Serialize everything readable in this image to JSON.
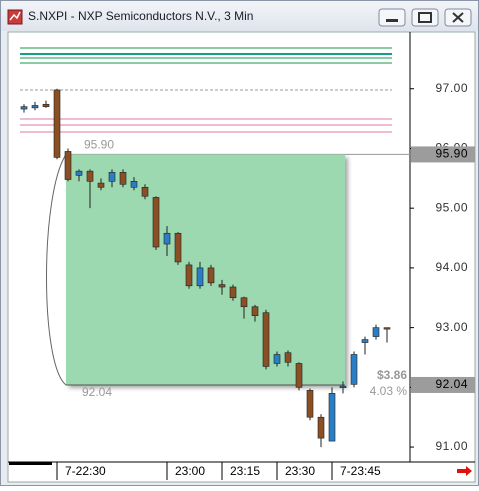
{
  "window_title": "S.NXPI - NXP Semiconductors N.V., 3 Min",
  "chart_data": {
    "type": "candlestick",
    "categories": [
      null,
      null,
      null,
      "7-22:30",
      null,
      null,
      null,
      null,
      null,
      null,
      null,
      null,
      null,
      "23:00",
      null,
      null,
      null,
      null,
      "23:15",
      null,
      null,
      null,
      null,
      "23:30",
      null,
      null,
      null,
      null,
      "7-23:45",
      null,
      null,
      null,
      null,
      null
    ],
    "open": [
      96.66,
      96.68,
      96.74,
      96.98,
      95.95,
      95.55,
      95.62,
      95.42,
      95.45,
      95.6,
      95.35,
      95.35,
      95.18,
      94.4,
      94.58,
      94.05,
      93.7,
      94.0,
      93.72,
      93.68,
      93.5,
      93.35,
      93.25,
      92.4,
      92.58,
      92.4,
      91.95,
      91.5,
      91.1,
      92.0,
      92.05,
      92.75,
      92.85,
      93.0
    ],
    "high": [
      96.74,
      96.78,
      96.8,
      97.0,
      96.0,
      95.65,
      95.65,
      95.5,
      95.65,
      95.65,
      95.52,
      95.4,
      95.2,
      94.7,
      94.6,
      94.1,
      94.1,
      94.05,
      93.8,
      93.72,
      93.52,
      93.38,
      93.3,
      92.6,
      92.62,
      92.42,
      91.98,
      91.55,
      92.0,
      92.1,
      92.6,
      92.85,
      93.05,
      93.0
    ],
    "low": [
      96.6,
      96.64,
      96.68,
      95.82,
      95.45,
      95.45,
      95.0,
      95.3,
      95.35,
      95.35,
      95.3,
      95.15,
      94.3,
      94.2,
      94.05,
      93.65,
      93.65,
      93.7,
      93.55,
      93.45,
      93.15,
      93.1,
      92.3,
      92.35,
      92.35,
      91.95,
      91.45,
      91.0,
      91.1,
      91.9,
      92.0,
      92.55,
      92.8,
      92.75
    ],
    "close": [
      96.7,
      96.72,
      96.7,
      95.85,
      95.48,
      95.62,
      95.45,
      95.35,
      95.6,
      95.4,
      95.45,
      95.2,
      94.35,
      94.58,
      94.1,
      93.7,
      94.0,
      93.75,
      93.68,
      93.5,
      93.35,
      93.2,
      92.35,
      92.55,
      92.42,
      92.0,
      91.5,
      91.15,
      91.9,
      92.02,
      92.55,
      92.8,
      93.0,
      92.98
    ],
    "up_color": "#2a7ec4",
    "down_color": "#8a4f22",
    "ylim": [
      90.75,
      97.95
    ],
    "yticks": [
      {
        "value": 91,
        "label": "91.00"
      },
      {
        "value": 92,
        "label": "92.00"
      },
      {
        "value": 93,
        "label": "93.00"
      },
      {
        "value": 94,
        "label": "94.00"
      },
      {
        "value": 95,
        "label": "95.00"
      },
      {
        "value": 96,
        "label": "96.00"
      },
      {
        "value": 97,
        "label": "97.00"
      }
    ],
    "range_top": {
      "value": 95.9,
      "label": "95.90"
    },
    "range_bottom": {
      "value": 92.04,
      "label": "92.04"
    },
    "range_change": {
      "value": 3.86,
      "label": "$3.86"
    },
    "range_change_pct": {
      "value": 4.03,
      "label": "4.03 %"
    }
  }
}
